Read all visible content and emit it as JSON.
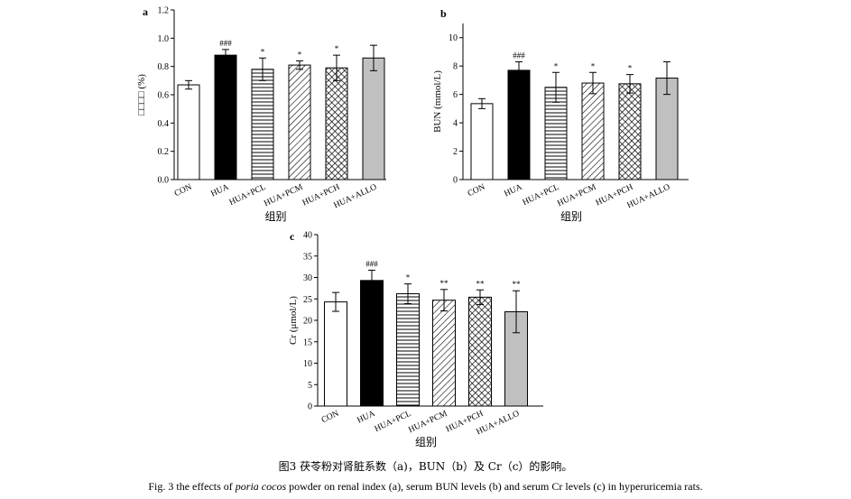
{
  "figure": {
    "caption_cn": "图3 茯苓粉对肾脏系数（a)，BUN（b）及 Cr（c）的影响。",
    "caption_en_prefix": "Fig. 3 the effects of ",
    "caption_en_italic": "poria cocos",
    "caption_en_suffix": " powder on renal index (a), serum BUN levels (b) and serum Cr levels (c) in hyperuricemia rats."
  },
  "chart_data": [
    {
      "panel": "a",
      "type": "bar",
      "categories": [
        "CON",
        "HUA",
        "HUA+PCL",
        "HUA+PCM",
        "HUA+PCH",
        "HUA+ALLO"
      ],
      "values": [
        0.67,
        0.88,
        0.78,
        0.81,
        0.79,
        0.86
      ],
      "errors": [
        0.03,
        0.04,
        0.08,
        0.03,
        0.09,
        0.09
      ],
      "annotations": [
        "",
        "###",
        "*",
        "*",
        "*",
        ""
      ],
      "ylabel": "□□□□ (%)",
      "xlabel": "组别",
      "ylim": [
        0,
        1.2
      ],
      "yticks": [
        "0.0",
        "0.2",
        "0.4",
        "0.6",
        "0.8",
        "1.0",
        "1.2"
      ]
    },
    {
      "panel": "b",
      "type": "bar",
      "categories": [
        "CON",
        "HUA",
        "HUA+PCL",
        "HUA+PCM",
        "HUA+PCH",
        "HUA+ALLO"
      ],
      "values": [
        5.35,
        7.7,
        6.5,
        6.8,
        6.75,
        7.15
      ],
      "errors": [
        0.35,
        0.6,
        1.05,
        0.75,
        0.65,
        1.15
      ],
      "annotations": [
        "",
        "###",
        "*",
        "*",
        "*",
        ""
      ],
      "ylabel": "BUN (mmol/L)",
      "xlabel": "组别",
      "ylim": [
        0,
        11
      ],
      "yticks": [
        "0",
        "2",
        "4",
        "6",
        "8",
        "10"
      ]
    },
    {
      "panel": "c",
      "type": "bar",
      "categories": [
        "CON",
        "HUA",
        "HUA+PCL",
        "HUA+PCM",
        "HUA+PCH",
        "HUA+ALLO"
      ],
      "values": [
        24.3,
        29.3,
        26.2,
        24.7,
        25.4,
        22
      ],
      "errors": [
        2.2,
        2.4,
        2.3,
        2.5,
        1.7,
        4.9
      ],
      "annotations": [
        "",
        "###",
        "*",
        "**",
        "**",
        "**"
      ],
      "ylabel": "Cr (μmol/L)",
      "xlabel": "组别",
      "ylim": [
        0,
        40
      ],
      "yticks": [
        "0",
        "5",
        "10",
        "15",
        "20",
        "25",
        "30",
        "35",
        "40"
      ]
    }
  ]
}
